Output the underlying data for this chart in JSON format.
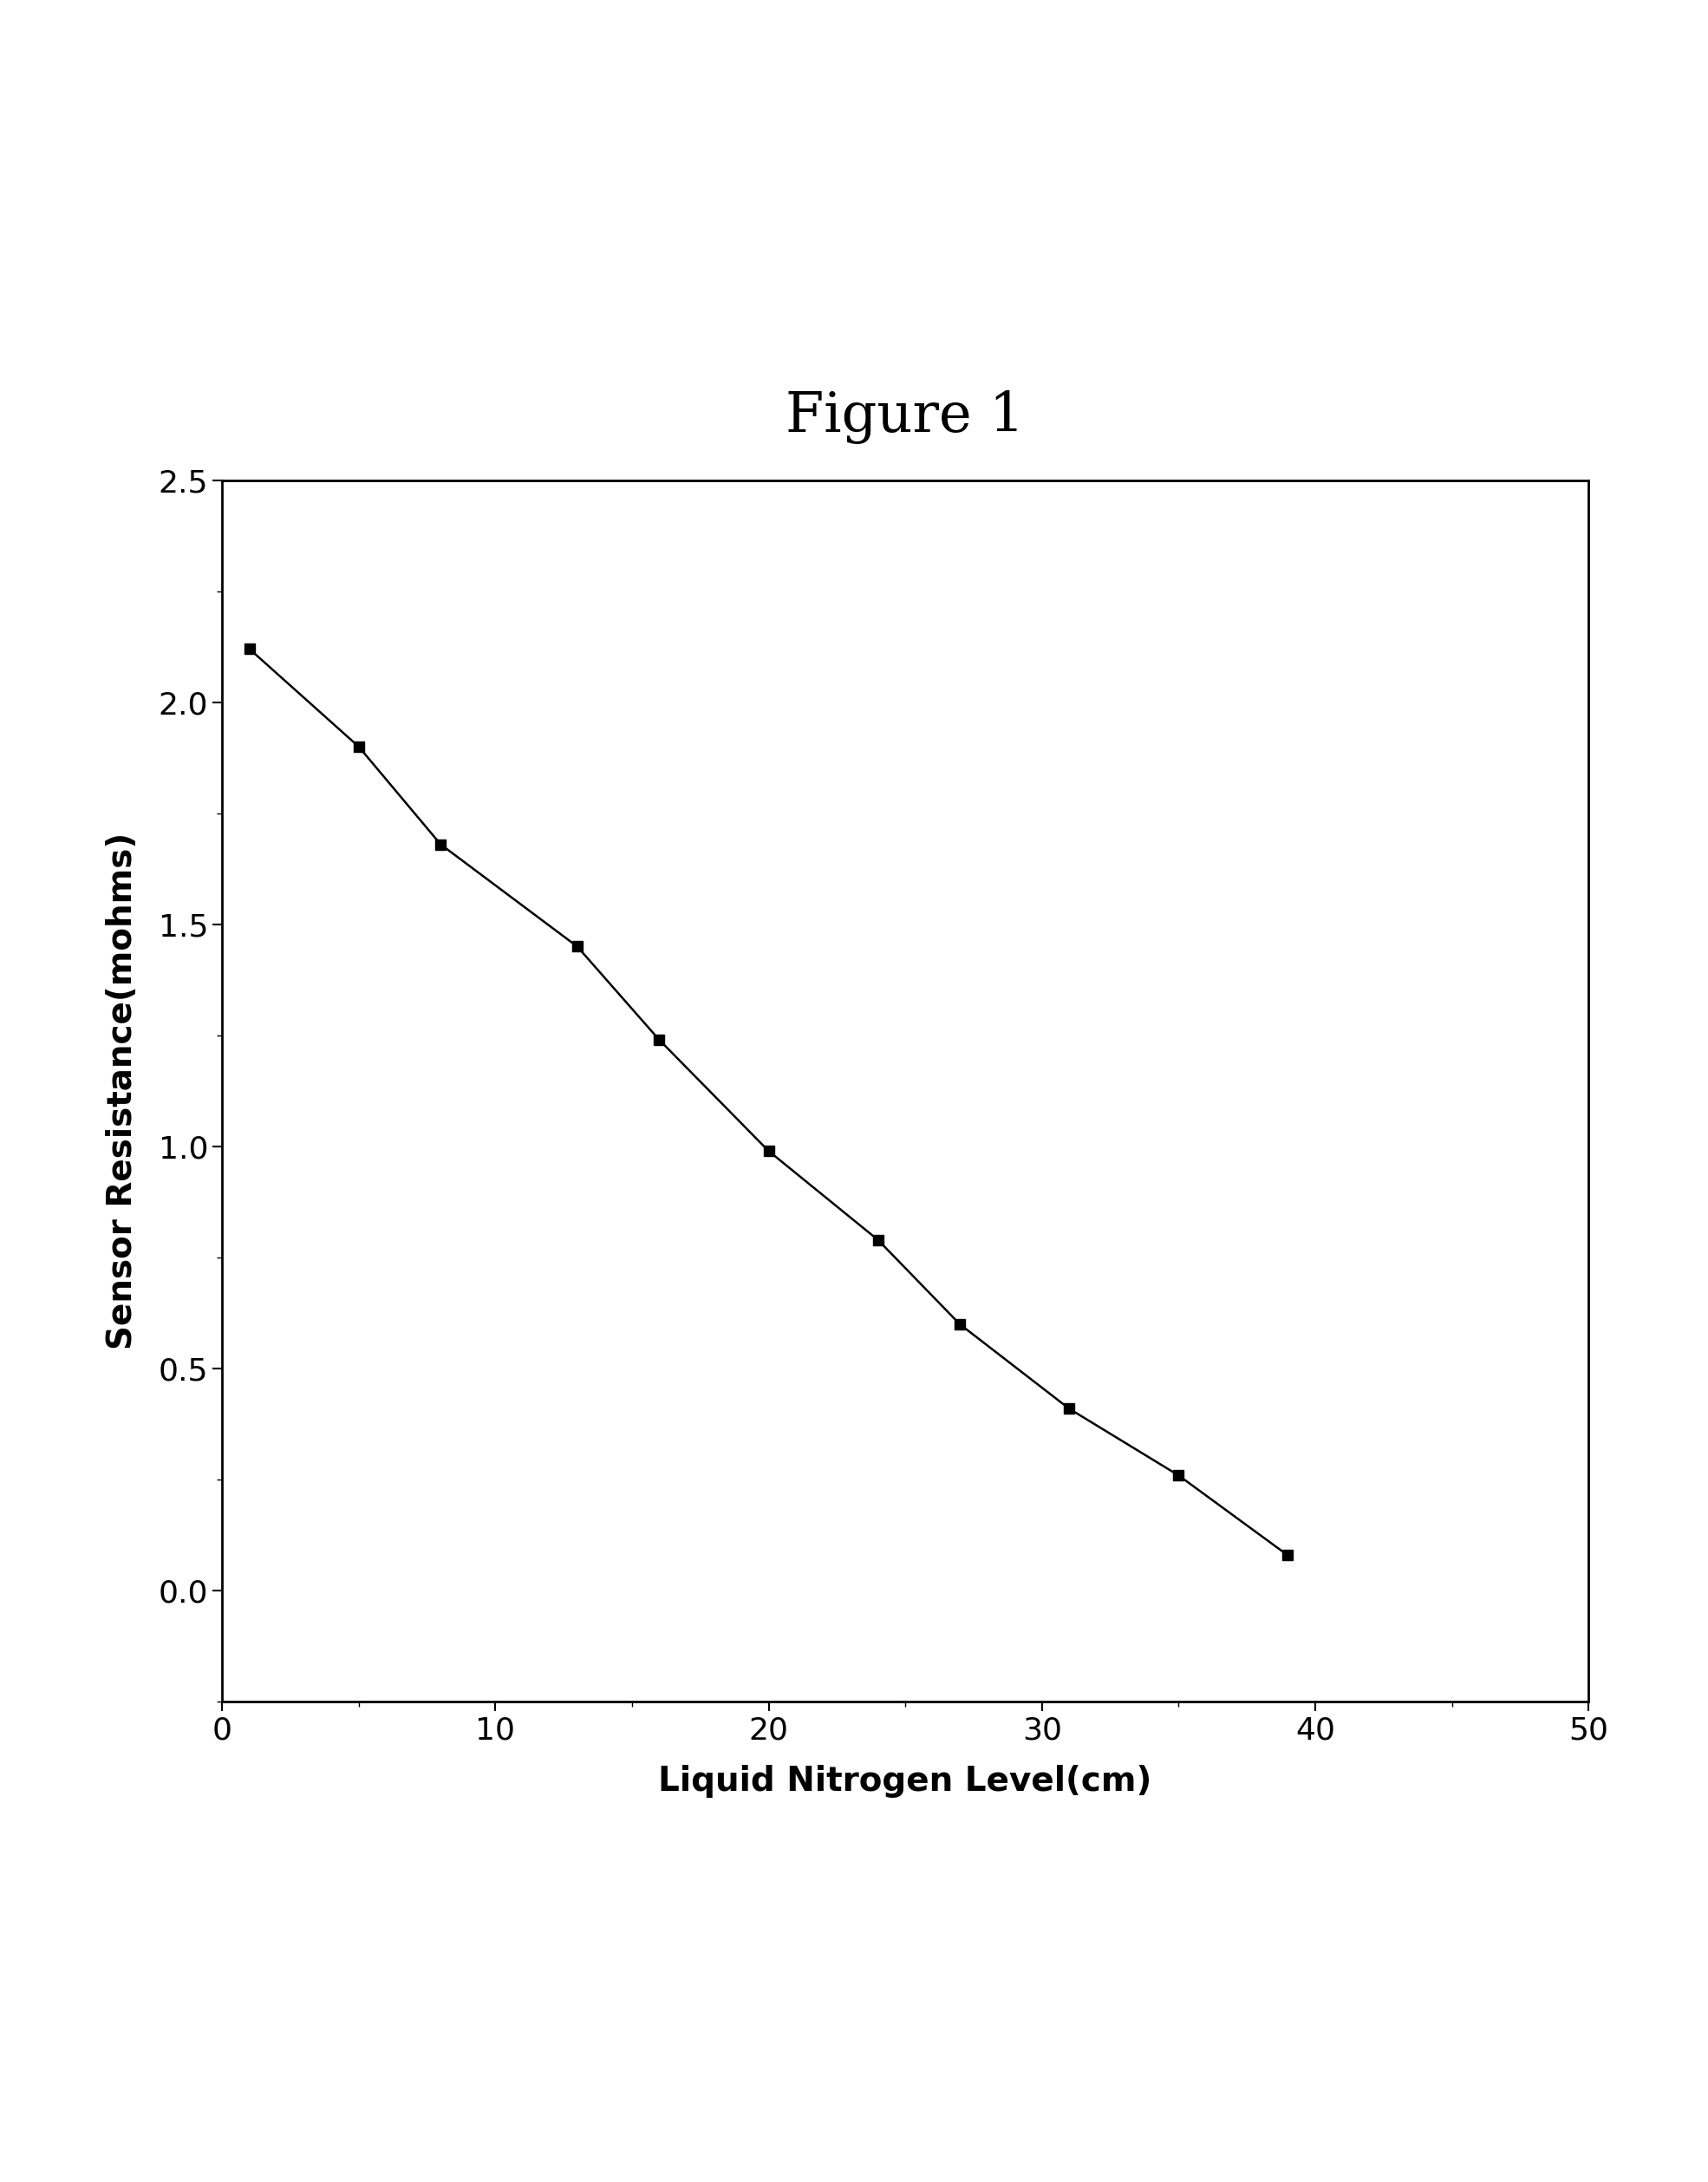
{
  "title": "Figure 1",
  "xlabel": "Liquid Nitrogen Level(cm)",
  "ylabel": "Sensor Resistance(mohms)",
  "x_data": [
    1,
    5,
    8,
    13,
    16,
    20,
    24,
    27,
    31,
    35,
    39
  ],
  "y_data": [
    2.12,
    1.9,
    1.68,
    1.45,
    1.24,
    0.99,
    0.79,
    0.6,
    0.41,
    0.26,
    0.08
  ],
  "xlim": [
    0,
    50
  ],
  "ylim": [
    -0.25,
    2.5
  ],
  "xticks": [
    0,
    10,
    20,
    30,
    40,
    50
  ],
  "yticks": [
    0.0,
    0.5,
    1.0,
    1.5,
    2.0,
    2.5
  ],
  "line_color": "#000000",
  "marker": "s",
  "marker_color": "#000000",
  "marker_size": 9,
  "line_width": 1.8,
  "title_fontsize": 46,
  "label_fontsize": 28,
  "tick_fontsize": 26,
  "background_color": "#ffffff",
  "fig_background": "#ffffff"
}
